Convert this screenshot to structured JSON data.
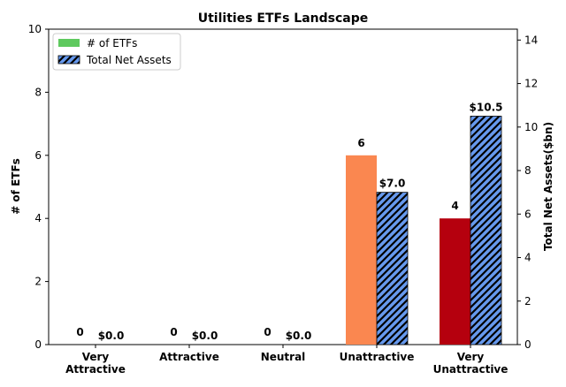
{
  "chart_data": {
    "type": "bar",
    "title": "Utilities ETFs Landscape",
    "categories": [
      [
        "Very",
        "Attractive"
      ],
      [
        "Attractive"
      ],
      [
        "Neutral"
      ],
      [
        "Unattractive"
      ],
      [
        "Very",
        "Unattractive"
      ]
    ],
    "series": [
      {
        "name": "# of ETFs",
        "axis": "left",
        "values": [
          0,
          0,
          0,
          6,
          4
        ],
        "labels": [
          "0",
          "0",
          "0",
          "6",
          "4"
        ],
        "colors": [
          "#5ec95e",
          "#5ec95e",
          "#5ec95e",
          "#fa8750",
          "#b5000e"
        ],
        "legend_color": "#5ec95e"
      },
      {
        "name": "Total Net Assets",
        "axis": "right",
        "values": [
          0.0,
          0.0,
          0.0,
          7.0,
          10.5
        ],
        "labels": [
          "$0.0",
          "$0.0",
          "$0.0",
          "$7.0",
          "$10.5"
        ],
        "color": "#6699ee",
        "hatch": "diagonal"
      }
    ],
    "ylabel": "# of ETFs",
    "ylabel_right": "Total Net Assets($bn)",
    "ylim": [
      0,
      10
    ],
    "ylim_right": [
      0,
      14.5
    ],
    "yticks": [
      0,
      2,
      4,
      6,
      8,
      10
    ],
    "yticks_right": [
      0,
      2,
      4,
      6,
      8,
      10,
      12,
      14
    ],
    "legend_position": "upper-left",
    "grid": false
  }
}
